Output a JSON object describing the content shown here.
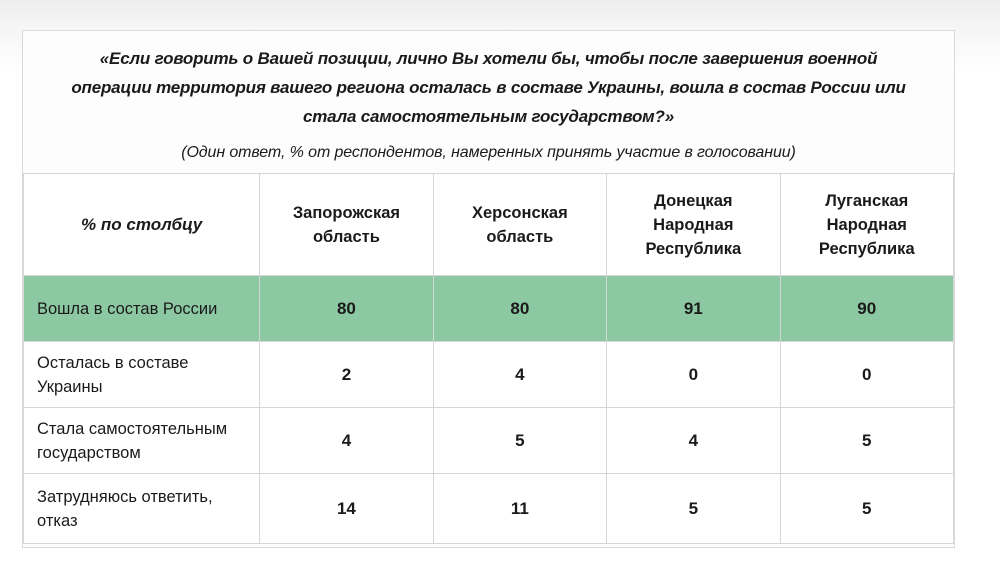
{
  "header": {
    "question_lines": [
      "«Если говорить о Вашей позиции, лично Вы хотели бы, чтобы после завершения военной",
      "операции территория вашего региона осталась в составе Украины, вошла в состав России или",
      "стала самостоятельным государством?»"
    ],
    "subtitle": "(Один ответ, % от респондентов, намеренных принять участие в голосовании)"
  },
  "table": {
    "corner_label": "% по столбцу",
    "columns": [
      "Запорожская область",
      "Херсонская область",
      "Донецкая Народная Республика",
      "Луганская Народная Республика"
    ],
    "rows": [
      {
        "label": "Вошла в состав России",
        "values": [
          "80",
          "80",
          "91",
          "90"
        ],
        "highlight": true
      },
      {
        "label": "Осталась в составе Украины",
        "values": [
          "2",
          "4",
          "0",
          "0"
        ],
        "highlight": false
      },
      {
        "label": "Стала самостоятельным государством",
        "values": [
          "4",
          "5",
          "4",
          "5"
        ],
        "highlight": false
      },
      {
        "label": "Затрудняюсь ответить, отказ",
        "values": [
          "14",
          "11",
          "5",
          "5"
        ],
        "highlight": false
      }
    ],
    "highlight_color": "#8cc8a2"
  }
}
